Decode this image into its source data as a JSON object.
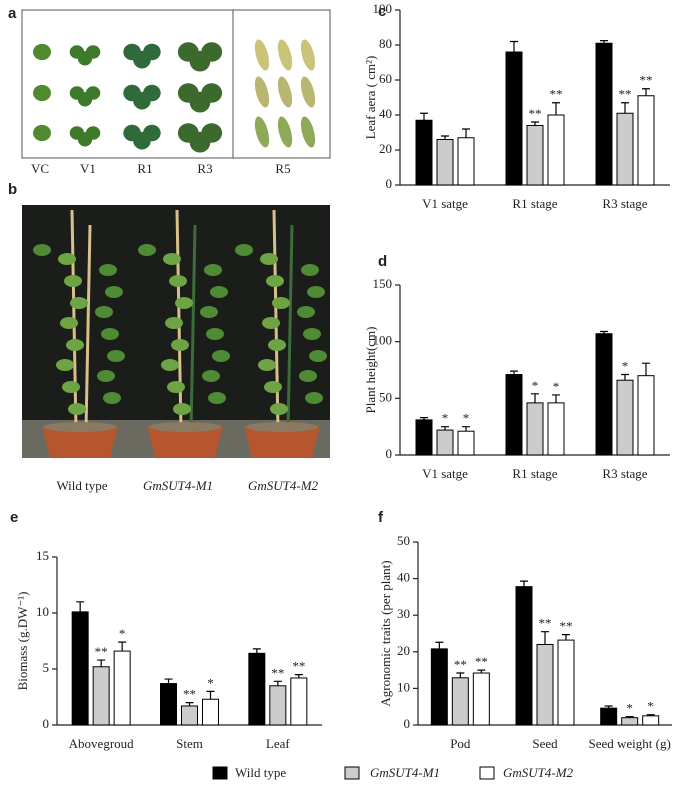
{
  "panel_labels": [
    "a",
    "b",
    "c",
    "d",
    "e",
    "f"
  ],
  "photo_a": {
    "labels": [
      "VC",
      "V1",
      "R1",
      "R3",
      "R5"
    ]
  },
  "photo_b": {
    "labels": [
      "Wild type",
      "GmSUT4-M1",
      "GmSUT4-M2"
    ]
  },
  "chart_data": [
    {
      "type": "bar",
      "panel": "c",
      "y_label": "Leaf aera ( cm²)",
      "categories": [
        "V1 satge",
        "R1 stage",
        "R3 stage"
      ],
      "ylim": [
        0,
        100
      ],
      "yticks": [
        0,
        20,
        40,
        60,
        80,
        100
      ],
      "series": [
        {
          "name": "Wild type",
          "color": "#000000",
          "values": [
            37,
            76,
            81
          ],
          "errors": [
            4,
            6,
            1.5
          ],
          "significance": [
            null,
            null,
            null
          ]
        },
        {
          "name": "GmSUT4-M1",
          "color": "#cccccc",
          "values": [
            26,
            34,
            41
          ],
          "errors": [
            2,
            2,
            6
          ],
          "significance": [
            null,
            "**",
            "**"
          ]
        },
        {
          "name": "GmSUT4-M2",
          "color": "#ffffff",
          "values": [
            27,
            40,
            51
          ],
          "errors": [
            5,
            7,
            4
          ],
          "significance": [
            null,
            "**",
            "**"
          ]
        }
      ]
    },
    {
      "type": "bar",
      "panel": "d",
      "y_label": "Plant height(cm)",
      "categories": [
        "V1 satge",
        "R1 stage",
        "R3 stage"
      ],
      "ylim": [
        0,
        150
      ],
      "yticks": [
        0,
        50,
        100,
        150
      ],
      "series": [
        {
          "name": "Wild type",
          "color": "#000000",
          "values": [
            31,
            71,
            107
          ],
          "errors": [
            2,
            3,
            2
          ],
          "significance": [
            null,
            null,
            null
          ]
        },
        {
          "name": "GmSUT4-M1",
          "color": "#cccccc",
          "values": [
            22,
            46,
            66
          ],
          "errors": [
            3,
            8,
            5
          ],
          "significance": [
            "*",
            "*",
            "*"
          ]
        },
        {
          "name": "GmSUT4-M2",
          "color": "#ffffff",
          "values": [
            21,
            46,
            70
          ],
          "errors": [
            4,
            7,
            11
          ],
          "significance": [
            "*",
            "*",
            null
          ]
        }
      ]
    },
    {
      "type": "bar",
      "panel": "e",
      "y_label": "Biomass (g.DW⁻¹)",
      "categories": [
        "Abovegroud",
        "Stem",
        "Leaf"
      ],
      "ylim": [
        0,
        15
      ],
      "yticks": [
        0,
        5,
        10,
        15
      ],
      "series": [
        {
          "name": "Wild type",
          "color": "#000000",
          "values": [
            10.1,
            3.7,
            6.4
          ],
          "errors": [
            0.9,
            0.4,
            0.4
          ],
          "significance": [
            null,
            null,
            null
          ]
        },
        {
          "name": "GmSUT4-M1",
          "color": "#cccccc",
          "values": [
            5.2,
            1.7,
            3.5
          ],
          "errors": [
            0.6,
            0.3,
            0.4
          ],
          "significance": [
            "**",
            "**",
            "**"
          ]
        },
        {
          "name": "GmSUT4-M2",
          "color": "#ffffff",
          "values": [
            6.6,
            2.3,
            4.2
          ],
          "errors": [
            0.8,
            0.7,
            0.3
          ],
          "significance": [
            "*",
            "*",
            "**"
          ]
        }
      ]
    },
    {
      "type": "bar",
      "panel": "f",
      "y_label": "Agronomic traits (per plant)",
      "categories": [
        "Pod",
        "Seed",
        "Seed weight (g)"
      ],
      "ylim": [
        0,
        50
      ],
      "yticks": [
        0,
        10,
        20,
        30,
        40,
        50
      ],
      "series": [
        {
          "name": "Wild type",
          "color": "#000000",
          "values": [
            20.8,
            37.8,
            4.6
          ],
          "errors": [
            1.8,
            1.5,
            0.6
          ],
          "significance": [
            null,
            null,
            null
          ]
        },
        {
          "name": "GmSUT4-M1",
          "color": "#cccccc",
          "values": [
            12.9,
            22,
            2
          ],
          "errors": [
            1.3,
            3.5,
            0.3
          ],
          "significance": [
            "**",
            "**",
            "*"
          ]
        },
        {
          "name": "GmSUT4-M2",
          "color": "#ffffff",
          "values": [
            14.2,
            23.2,
            2.5
          ],
          "errors": [
            0.8,
            1.5,
            0.3
          ],
          "significance": [
            "**",
            "**",
            "*"
          ]
        }
      ]
    }
  ]
}
